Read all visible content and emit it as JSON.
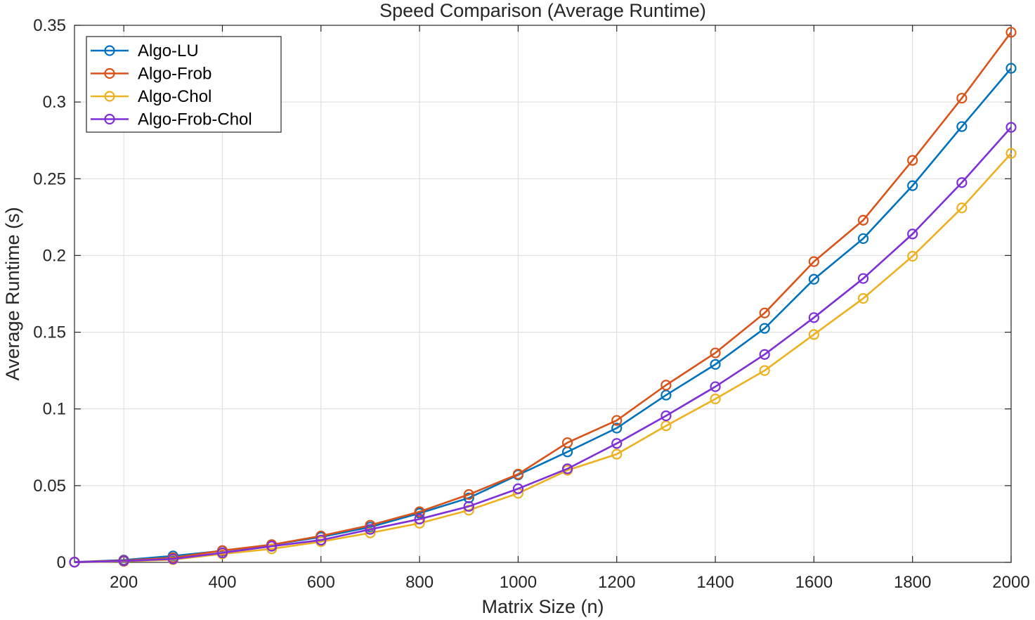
{
  "chart_data": {
    "type": "line",
    "title": "Speed Comparison (Average Runtime)",
    "xlabel": "Matrix Size (n)",
    "ylabel": "Average Runtime (s)",
    "xlim": [
      100,
      2000
    ],
    "ylim": [
      0,
      0.35
    ],
    "xticks": [
      200,
      400,
      600,
      800,
      1000,
      1200,
      1400,
      1600,
      1800,
      2000
    ],
    "yticks": [
      0,
      0.05,
      0.1,
      0.15,
      0.2,
      0.25,
      0.3,
      0.35
    ],
    "ytick_labels": [
      "0",
      "0.05",
      "0.1",
      "0.15",
      "0.2",
      "0.25",
      "0.3",
      "0.35"
    ],
    "grid": true,
    "legend_position": "top-left",
    "x": [
      100,
      200,
      300,
      400,
      500,
      600,
      700,
      800,
      900,
      1000,
      1100,
      1200,
      1300,
      1400,
      1500,
      1600,
      1700,
      1800,
      1900,
      2000
    ],
    "series": [
      {
        "name": "Algo-LU",
        "color": "#0072BD",
        "values": [
          0.0002,
          0.0015,
          0.0042,
          0.0075,
          0.0115,
          0.0165,
          0.023,
          0.032,
          0.042,
          0.057,
          0.072,
          0.0875,
          0.109,
          0.129,
          0.1525,
          0.1845,
          0.211,
          0.2455,
          0.284,
          0.322
        ]
      },
      {
        "name": "Algo-Frob",
        "color": "#D95319",
        "values": [
          0.0002,
          0.0012,
          0.003,
          0.0077,
          0.0115,
          0.0172,
          0.0242,
          0.033,
          0.0442,
          0.0575,
          0.078,
          0.0925,
          0.1155,
          0.1365,
          0.1625,
          0.196,
          0.223,
          0.262,
          0.3025,
          0.3455
        ]
      },
      {
        "name": "Algo-Chol",
        "color": "#EDB120",
        "values": [
          0.0001,
          0.0006,
          0.0018,
          0.0055,
          0.0088,
          0.0135,
          0.0192,
          0.0255,
          0.034,
          0.045,
          0.06,
          0.0705,
          0.089,
          0.1065,
          0.125,
          0.1485,
          0.172,
          0.1995,
          0.231,
          0.2665
        ]
      },
      {
        "name": "Algo-Frob-Chol",
        "color": "#7E2FD8",
        "values": [
          0.0001,
          0.0009,
          0.0022,
          0.0062,
          0.0105,
          0.0145,
          0.0215,
          0.0282,
          0.0365,
          0.048,
          0.061,
          0.0775,
          0.0955,
          0.1145,
          0.1355,
          0.1595,
          0.185,
          0.214,
          0.2475,
          0.2835
        ]
      }
    ]
  }
}
